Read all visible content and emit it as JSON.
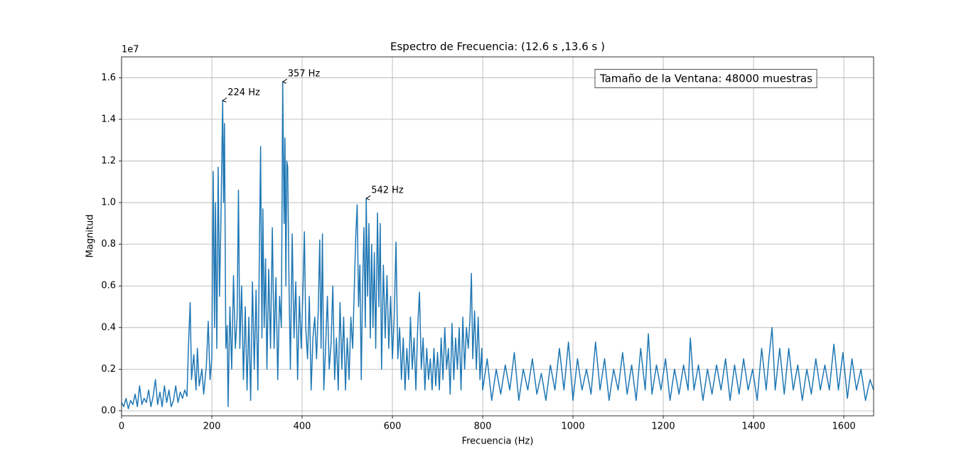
{
  "chart_data": {
    "type": "line",
    "title": "Espectro de Frecuencia: (12.6 s ,13.6 s )",
    "xlabel": "Frecuencia (Hz)",
    "ylabel": "Magnitud",
    "y_offset_label": "1e7",
    "textbox": "Tamaño de la Ventana: 48000 muestras",
    "color": "#1f77b4",
    "grid": true,
    "xlim": [
      0,
      1666
    ],
    "ylim": [
      -0.024,
      1.7
    ],
    "xticks": [
      0,
      200,
      400,
      600,
      800,
      1000,
      1200,
      1400,
      1600
    ],
    "yticks": [
      {
        "value": 0,
        "label": "0.0"
      },
      {
        "value": 0.2,
        "label": "0.2"
      },
      {
        "value": 0.4,
        "label": "0.4"
      },
      {
        "value": 0.6,
        "label": "0.6"
      },
      {
        "value": 0.8,
        "label": "0.8"
      },
      {
        "value": 1.0,
        "label": "1.0"
      },
      {
        "value": 1.2,
        "label": "1.2"
      },
      {
        "value": 1.4,
        "label": "1.4"
      },
      {
        "value": 1.6,
        "label": "1.6"
      }
    ],
    "annotations": [
      {
        "text": "224 Hz",
        "x": 224,
        "y": 1.49
      },
      {
        "text": "357 Hz",
        "x": 357,
        "y": 1.58
      },
      {
        "text": "542 Hz",
        "x": 542,
        "y": 1.02
      }
    ],
    "x": [
      0,
      5,
      10,
      15,
      20,
      25,
      30,
      35,
      40,
      45,
      50,
      55,
      60,
      65,
      70,
      75,
      80,
      85,
      90,
      95,
      100,
      105,
      110,
      115,
      120,
      125,
      130,
      135,
      140,
      145,
      148,
      152,
      155,
      160,
      165,
      168,
      172,
      178,
      182,
      188,
      192,
      196,
      200,
      203,
      206,
      208,
      211,
      214,
      217,
      220,
      224,
      226,
      228,
      231,
      234,
      236,
      240,
      244,
      248,
      252,
      256,
      259,
      262,
      266,
      270,
      274,
      278,
      282,
      286,
      290,
      294,
      298,
      302,
      305,
      308,
      311,
      313,
      316,
      319,
      322,
      326,
      330,
      334,
      338,
      342,
      346,
      350,
      354,
      357,
      360,
      362,
      364,
      366,
      368,
      371,
      374,
      378,
      382,
      386,
      390,
      394,
      398,
      402,
      405,
      408,
      412,
      416,
      420,
      424,
      428,
      432,
      436,
      439,
      442,
      445,
      448,
      452,
      456,
      460,
      464,
      468,
      472,
      476,
      480,
      484,
      488,
      492,
      496,
      500,
      504,
      508,
      512,
      516,
      519,
      522,
      525,
      528,
      531,
      534,
      537,
      540,
      542,
      545,
      548,
      551,
      554,
      557,
      560,
      563,
      567,
      570,
      573,
      576,
      580,
      584,
      588,
      592,
      596,
      600,
      604,
      608,
      612,
      616,
      620,
      624,
      628,
      632,
      636,
      640,
      644,
      648,
      652,
      656,
      660,
      664,
      668,
      672,
      676,
      680,
      684,
      688,
      692,
      696,
      700,
      704,
      708,
      712,
      716,
      720,
      724,
      728,
      732,
      736,
      740,
      744,
      748,
      752,
      756,
      760,
      764,
      768,
      772,
      775,
      778,
      782,
      786,
      790,
      794,
      798,
      800,
      810,
      820,
      830,
      840,
      850,
      860,
      870,
      880,
      890,
      900,
      910,
      920,
      930,
      940,
      950,
      960,
      970,
      980,
      990,
      1000,
      1010,
      1020,
      1030,
      1040,
      1050,
      1060,
      1070,
      1080,
      1090,
      1100,
      1110,
      1120,
      1130,
      1140,
      1150,
      1160,
      1167,
      1175,
      1185,
      1195,
      1205,
      1215,
      1225,
      1235,
      1245,
      1255,
      1260,
      1268,
      1278,
      1288,
      1298,
      1308,
      1318,
      1328,
      1338,
      1348,
      1358,
      1368,
      1378,
      1388,
      1398,
      1408,
      1418,
      1428,
      1434,
      1441,
      1448,
      1458,
      1468,
      1478,
      1488,
      1498,
      1508,
      1518,
      1528,
      1538,
      1548,
      1558,
      1568,
      1578,
      1588,
      1598,
      1608,
      1618,
      1628,
      1638,
      1648,
      1658,
      1666
    ],
    "values": [
      0.04,
      0.02,
      0.06,
      0.01,
      0.05,
      0.03,
      0.08,
      0.02,
      0.12,
      0.03,
      0.06,
      0.04,
      0.1,
      0.02,
      0.07,
      0.15,
      0.03,
      0.09,
      0.02,
      0.12,
      0.04,
      0.1,
      0.02,
      0.05,
      0.12,
      0.04,
      0.09,
      0.06,
      0.1,
      0.07,
      0.3,
      0.52,
      0.15,
      0.27,
      0.1,
      0.3,
      0.12,
      0.2,
      0.08,
      0.22,
      0.43,
      0.15,
      0.25,
      1.15,
      0.4,
      1.0,
      0.3,
      1.17,
      0.55,
      0.9,
      1.49,
      1.0,
      1.38,
      0.3,
      0.41,
      0.02,
      0.5,
      0.2,
      0.65,
      0.3,
      0.45,
      1.06,
      0.3,
      0.6,
      0.15,
      0.5,
      0.1,
      0.45,
      0.05,
      0.62,
      0.2,
      0.58,
      0.1,
      0.7,
      1.27,
      0.35,
      0.97,
      0.4,
      0.73,
      0.2,
      0.68,
      0.3,
      0.88,
      0.3,
      0.64,
      0.15,
      0.55,
      0.4,
      1.58,
      0.9,
      1.31,
      0.6,
      1.2,
      1.17,
      0.6,
      0.2,
      0.85,
      0.35,
      0.62,
      0.15,
      0.55,
      0.3,
      0.59,
      0.86,
      0.4,
      0.25,
      0.55,
      0.1,
      0.35,
      0.45,
      0.25,
      0.5,
      0.82,
      0.3,
      0.85,
      0.1,
      0.3,
      0.55,
      0.2,
      0.32,
      0.6,
      0.15,
      0.35,
      0.1,
      0.52,
      0.2,
      0.45,
      0.1,
      0.35,
      0.15,
      0.45,
      0.3,
      0.62,
      0.85,
      0.99,
      0.5,
      0.7,
      0.15,
      0.6,
      0.88,
      0.4,
      1.02,
      0.55,
      0.9,
      0.35,
      0.8,
      0.4,
      0.76,
      0.3,
      0.95,
      0.5,
      0.9,
      0.2,
      0.7,
      0.35,
      0.65,
      0.3,
      0.55,
      0.25,
      0.45,
      0.81,
      0.25,
      0.4,
      0.15,
      0.35,
      0.1,
      0.3,
      0.15,
      0.45,
      0.2,
      0.35,
      0.1,
      0.4,
      0.57,
      0.2,
      0.35,
      0.1,
      0.3,
      0.15,
      0.25,
      0.1,
      0.3,
      0.12,
      0.28,
      0.1,
      0.35,
      0.15,
      0.4,
      0.2,
      0.3,
      0.08,
      0.42,
      0.15,
      0.35,
      0.2,
      0.4,
      0.1,
      0.45,
      0.2,
      0.4,
      0.3,
      0.45,
      0.66,
      0.25,
      0.48,
      0.2,
      0.45,
      0.15,
      0.3,
      0.1,
      0.25,
      0.05,
      0.2,
      0.08,
      0.22,
      0.1,
      0.28,
      0.05,
      0.2,
      0.1,
      0.25,
      0.08,
      0.18,
      0.05,
      0.22,
      0.1,
      0.3,
      0.1,
      0.33,
      0.05,
      0.25,
      0.1,
      0.2,
      0.08,
      0.33,
      0.1,
      0.25,
      0.05,
      0.2,
      0.1,
      0.28,
      0.08,
      0.22,
      0.05,
      0.3,
      0.1,
      0.37,
      0.08,
      0.22,
      0.1,
      0.25,
      0.05,
      0.2,
      0.08,
      0.22,
      0.1,
      0.35,
      0.1,
      0.22,
      0.05,
      0.2,
      0.08,
      0.22,
      0.1,
      0.25,
      0.05,
      0.22,
      0.08,
      0.25,
      0.1,
      0.2,
      0.05,
      0.3,
      0.1,
      0.25,
      0.4,
      0.1,
      0.3,
      0.08,
      0.3,
      0.1,
      0.22,
      0.05,
      0.2,
      0.08,
      0.25,
      0.1,
      0.22,
      0.1,
      0.32,
      0.1,
      0.28,
      0.06,
      0.25,
      0.1,
      0.2,
      0.05,
      0.15,
      0.1
    ]
  }
}
